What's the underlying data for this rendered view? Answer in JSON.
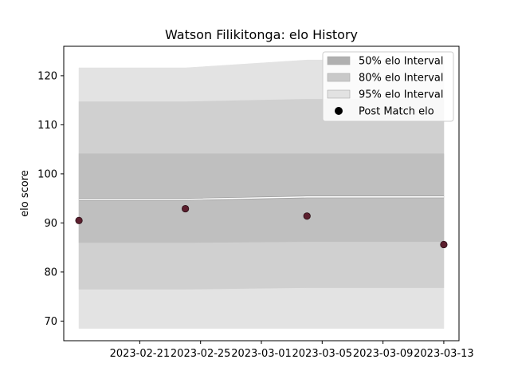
{
  "chart_data": {
    "type": "line",
    "title": "Watson Filikitonga: elo History",
    "xlabel": "",
    "ylabel": "elo score",
    "x_axis_type": "date",
    "xlim": [
      "2023-02-16",
      "2023-03-14"
    ],
    "ylim": [
      66,
      126
    ],
    "x_ticks": [
      "2023-02-21",
      "2023-02-25",
      "2023-03-01",
      "2023-03-05",
      "2023-03-09",
      "2023-03-13"
    ],
    "y_ticks": [
      70,
      80,
      90,
      100,
      110,
      120
    ],
    "grid": false,
    "legend_position": "top-right",
    "x": [
      "2023-02-17",
      "2023-02-24",
      "2023-03-04",
      "2023-03-13"
    ],
    "series": [
      {
        "name": "Mean elo",
        "kind": "line",
        "values": [
          94.8,
          94.8,
          95.3,
          95.3
        ],
        "color": "#ffffff"
      },
      {
        "name": "95% elo Interval",
        "kind": "band",
        "lower": [
          68.5,
          68.5,
          68.5,
          68.5
        ],
        "upper": [
          121.6,
          121.6,
          123.2,
          123.2
        ],
        "color": "#e3e3e3"
      },
      {
        "name": "80% elo Interval",
        "kind": "band",
        "lower": [
          76.5,
          76.5,
          76.8,
          76.8
        ],
        "upper": [
          114.7,
          114.7,
          115.2,
          115.2
        ],
        "color": "#d0d0d0"
      },
      {
        "name": "50% elo Interval",
        "kind": "band",
        "lower": [
          86.0,
          86.0,
          86.2,
          86.2
        ],
        "upper": [
          104.1,
          104.1,
          104.1,
          104.1
        ],
        "color": "#bfbfbf"
      },
      {
        "name": "Post Match elo",
        "kind": "scatter",
        "values": [
          90.5,
          92.9,
          91.4,
          85.6
        ],
        "color": "#5c1f2e"
      }
    ],
    "legend": [
      {
        "label": "50% elo Interval",
        "swatch": "band",
        "color": "#b0b0b0"
      },
      {
        "label": "80% elo Interval",
        "swatch": "band",
        "color": "#c9c9c9"
      },
      {
        "label": "95% elo Interval",
        "swatch": "band",
        "color": "#e2e2e2"
      },
      {
        "label": "Post Match elo",
        "swatch": "dot",
        "color": "#000000"
      }
    ]
  }
}
